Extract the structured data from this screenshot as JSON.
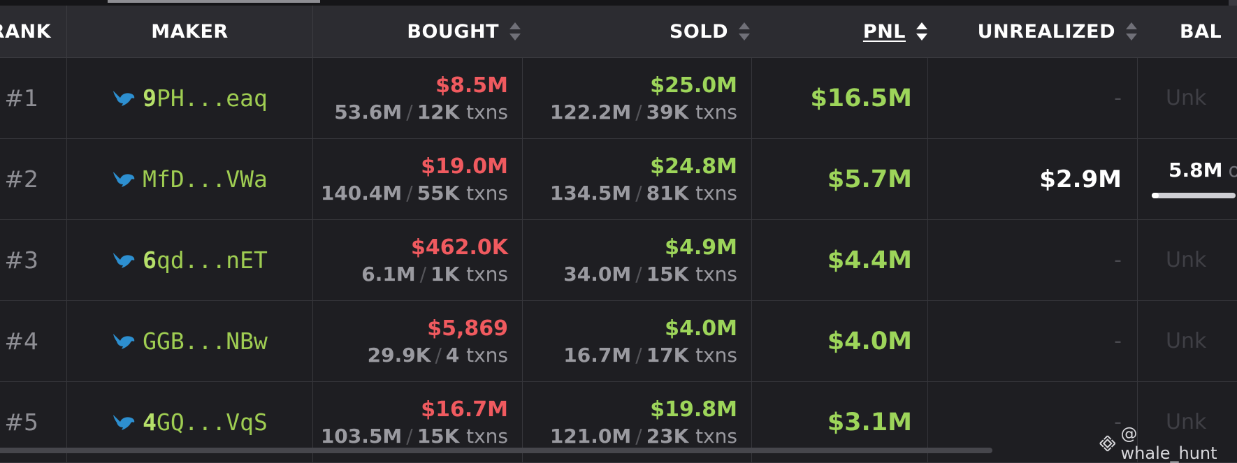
{
  "header": {
    "rank": "RANK",
    "maker": "MAKER",
    "bought": "BOUGHT",
    "sold": "SOLD",
    "pnl": "PNL",
    "unrealized": "UNREALIZED",
    "balance": "BAL"
  },
  "rows": [
    {
      "rank": "#1",
      "addr_lead": "9",
      "addr_rest": "PH...eaq",
      "bought_usd": "$8.5M",
      "bought_tokens": "53.6M",
      "bought_txns": "12K",
      "sold_usd": "$25.0M",
      "sold_tokens": "122.2M",
      "sold_txns": "39K",
      "pnl": "$16.5M",
      "unrealized": "-",
      "balance": "Unk"
    },
    {
      "rank": "#2",
      "addr_lead": "",
      "addr_rest": "MfD...VWa",
      "bought_usd": "$19.0M",
      "bought_tokens": "140.4M",
      "bought_txns": "55K",
      "sold_usd": "$24.8M",
      "sold_tokens": "134.5M",
      "sold_txns": "81K",
      "pnl": "$5.7M",
      "unrealized": "$2.9M",
      "balance_value": "5.8M",
      "balance_suffix": "o"
    },
    {
      "rank": "#3",
      "addr_lead": "6",
      "addr_rest": "qd...nET",
      "bought_usd": "$462.0K",
      "bought_tokens": "6.1M",
      "bought_txns": "1K",
      "sold_usd": "$4.9M",
      "sold_tokens": "34.0M",
      "sold_txns": "15K",
      "pnl": "$4.4M",
      "unrealized": "-",
      "balance": "Unk"
    },
    {
      "rank": "#4",
      "addr_lead": "",
      "addr_rest": "GGB...NBw",
      "bought_usd": "$5,869",
      "bought_tokens": "29.9K",
      "bought_txns": "4",
      "sold_usd": "$4.0M",
      "sold_tokens": "16.7M",
      "sold_txns": "17K",
      "pnl": "$4.0M",
      "unrealized": "-",
      "balance": "Unk"
    },
    {
      "rank": "#5",
      "addr_lead": "4",
      "addr_rest": "GQ...VqS",
      "bought_usd": "$16.7M",
      "bought_tokens": "103.5M",
      "bought_txns": "15K",
      "sold_usd": "$19.8M",
      "sold_tokens": "121.0M",
      "sold_txns": "23K",
      "pnl": "$3.1M",
      "unrealized": "-",
      "balance": "Unk"
    }
  ],
  "txns_label": "txns",
  "slash": "/",
  "watermark": "@ whale_hunt",
  "colors": {
    "loss": "#f05a5f",
    "gain": "#9dd55a",
    "address": "#9fcd52",
    "icon": "#2d8fd0"
  }
}
